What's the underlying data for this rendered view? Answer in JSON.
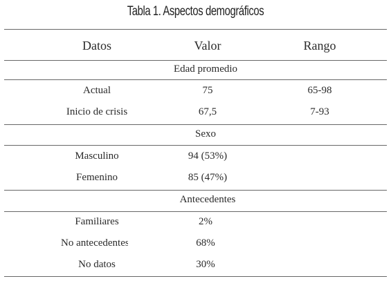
{
  "title": "Tabla 1. Aspectos demográficos",
  "columns": [
    "Datos",
    "Valor",
    "Rango"
  ],
  "sections": [
    {
      "label": "Edad promedio",
      "rows": [
        {
          "dato": "Actual",
          "valor": "75",
          "rango": "65-98"
        },
        {
          "dato": "Inicio de crisis",
          "valor": "67,5",
          "rango": "7-93"
        }
      ]
    },
    {
      "label": "Sexo",
      "rows": [
        {
          "dato": "Masculino",
          "valor": "94 (53%)",
          "rango": ""
        },
        {
          "dato": "Femenino",
          "valor": "85 (47%)",
          "rango": ""
        }
      ]
    },
    {
      "label": "Antecedentes",
      "rows": [
        {
          "dato": "Familiares",
          "valor": "2%",
          "rango": ""
        },
        {
          "dato": "No antecedentes",
          "valor": "68%",
          "rango": ""
        },
        {
          "dato": "No datos",
          "valor": "30%",
          "rango": ""
        }
      ]
    }
  ]
}
